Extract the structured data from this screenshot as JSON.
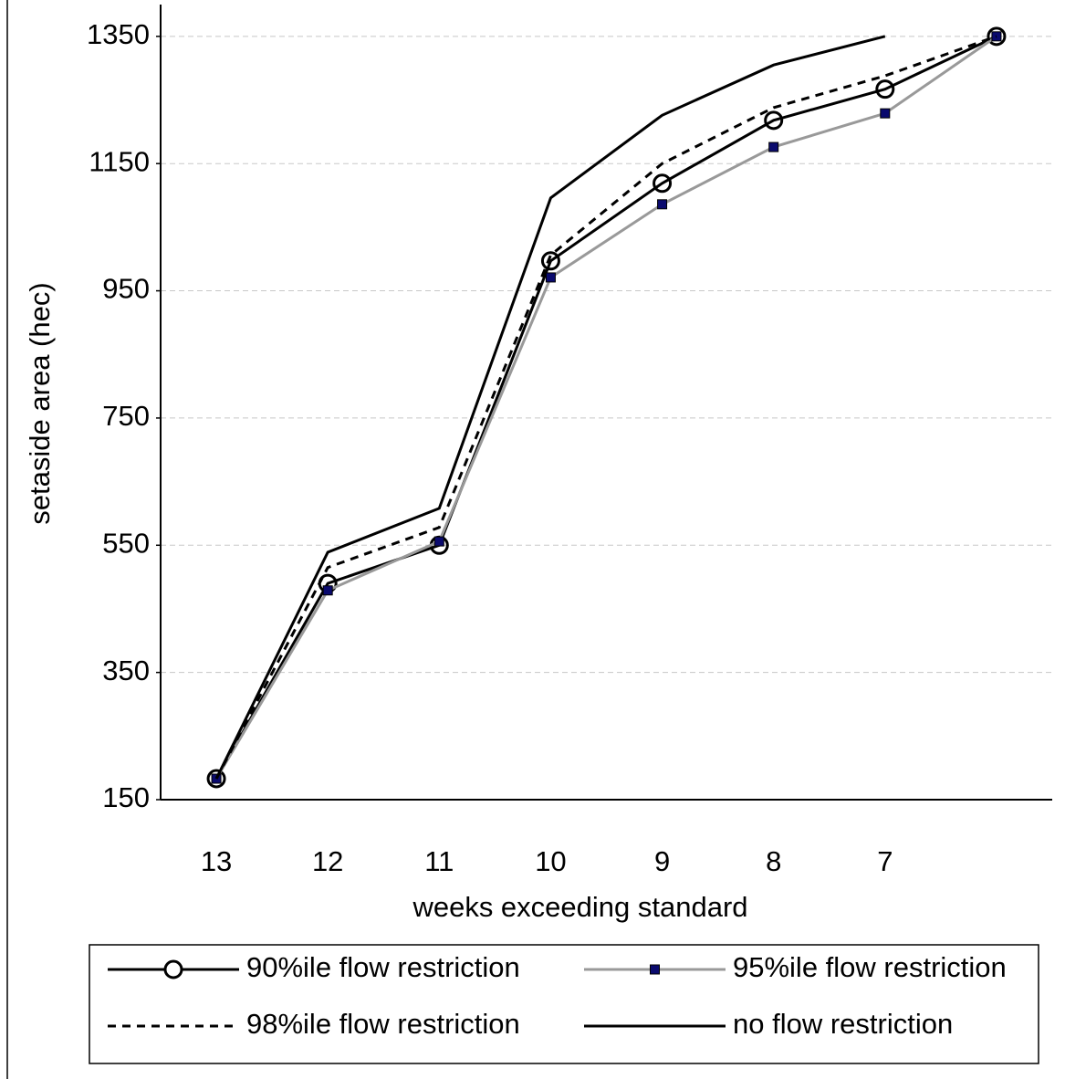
{
  "chart_data": {
    "type": "line",
    "x_label": "weeks exceeding standard",
    "y_label": "setaside area (hec)",
    "categories": [
      "13",
      "12",
      "11",
      "10",
      "9",
      "8",
      "7",
      null
    ],
    "ylim": [
      150,
      1400
    ],
    "yticks": [
      150,
      350,
      550,
      750,
      950,
      1150,
      1350
    ],
    "grid": true,
    "series": [
      {
        "name": "90%ile flow restriction",
        "color": "#000000",
        "line_style": "solid",
        "marker": "circle",
        "values": [
          183,
          490,
          550,
          997,
          1119,
          1218,
          1267,
          1350
        ]
      },
      {
        "name": "95%ile flow restriction",
        "color": "#999999",
        "line_style": "solid",
        "marker": "square",
        "values": [
          183,
          479,
          556,
          971,
          1086,
          1176,
          1229,
          1350
        ]
      },
      {
        "name": "98%ile flow restriction",
        "color": "#000000",
        "line_style": "dashed",
        "marker": "none",
        "values": [
          183,
          515,
          578,
          1006,
          1150,
          1238,
          1288,
          1350
        ]
      },
      {
        "name": "no flow restriction",
        "color": "#000000",
        "line_style": "solid",
        "marker": "none",
        "values": [
          183,
          539,
          608,
          1096,
          1226,
          1305,
          1350,
          null
        ]
      }
    ]
  }
}
